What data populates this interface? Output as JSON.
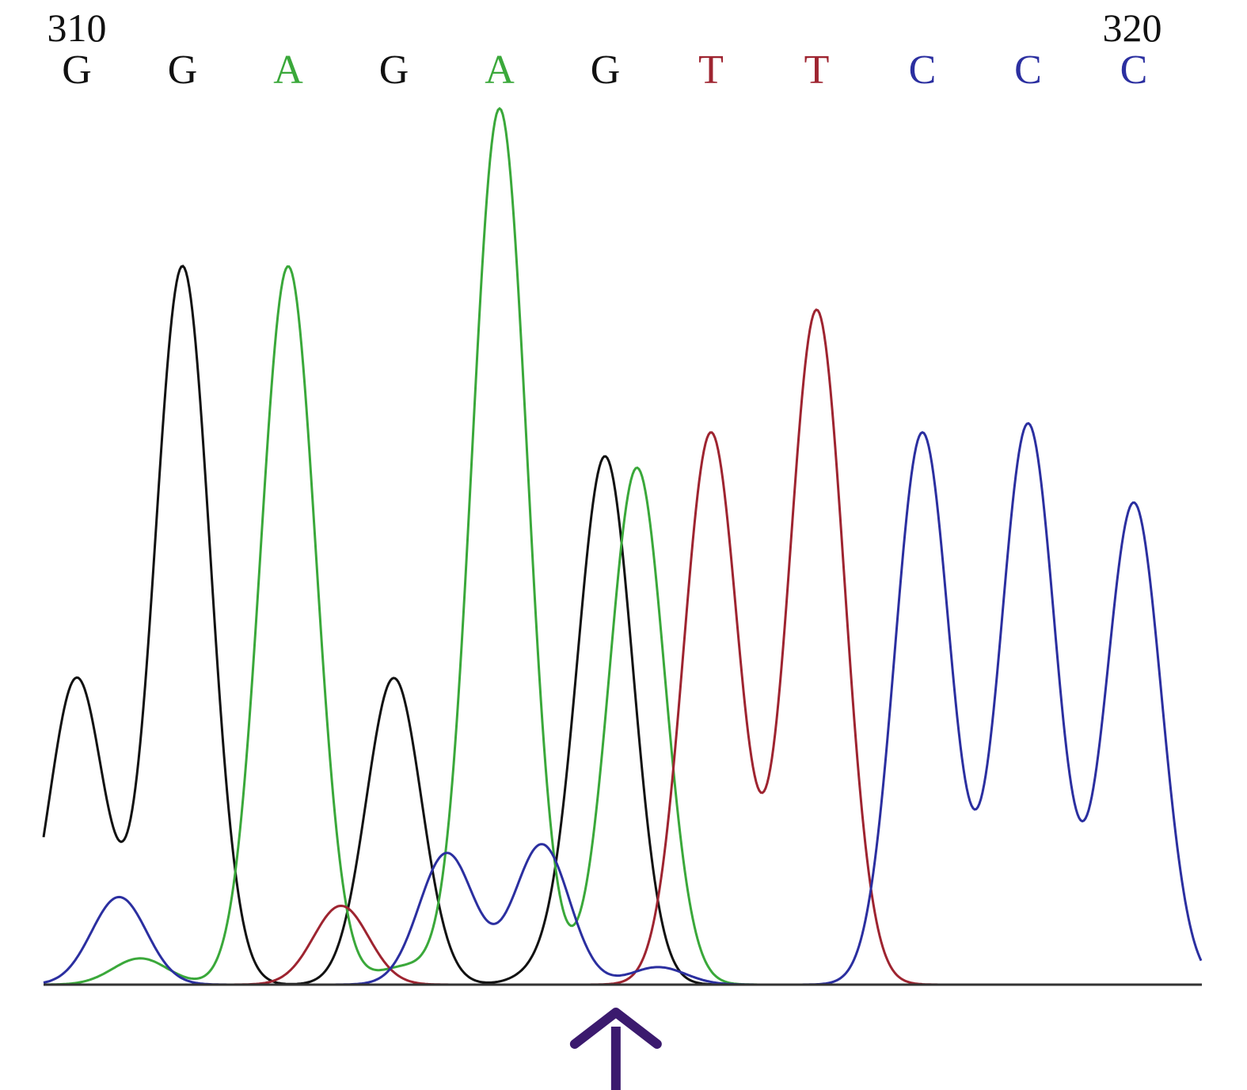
{
  "chart_data": {
    "type": "line",
    "title": "",
    "xlabel": "",
    "ylabel": "",
    "grid": false,
    "position_labels": [
      "310",
      "320"
    ],
    "bases": [
      "G",
      "G",
      "A",
      "G",
      "A",
      "G",
      "T",
      "T",
      "C",
      "C",
      "C"
    ],
    "base_colors": {
      "A": "#3aa83a",
      "C": "#2b2fa0",
      "G": "#111111",
      "T": "#9e2430"
    },
    "ylim": [
      0,
      100
    ],
    "series": [
      {
        "name": "G",
        "peaks": [
          {
            "base_index": 0,
            "height": 35
          },
          {
            "base_index": 1,
            "height": 82
          },
          {
            "base_index": 3,
            "height": 35
          },
          {
            "base_index": 5,
            "height": 60
          },
          {
            "base_index": 4.5,
            "height": 2
          }
        ]
      },
      {
        "name": "A",
        "peaks": [
          {
            "base_index": 2,
            "height": 82
          },
          {
            "base_index": 4,
            "height": 100
          },
          {
            "base_index": 5.3,
            "height": 59
          },
          {
            "base_index": 0.6,
            "height": 3
          },
          {
            "base_index": 3.1,
            "height": 2
          }
        ]
      },
      {
        "name": "T",
        "peaks": [
          {
            "base_index": 6,
            "height": 63
          },
          {
            "base_index": 7,
            "height": 77
          },
          {
            "base_index": 2.5,
            "height": 9
          }
        ]
      },
      {
        "name": "C",
        "peaks": [
          {
            "base_index": 0.4,
            "height": 10
          },
          {
            "base_index": 3.5,
            "height": 15
          },
          {
            "base_index": 4.4,
            "height": 16
          },
          {
            "base_index": 5.5,
            "height": 2
          },
          {
            "base_index": 8,
            "height": 63
          },
          {
            "base_index": 9,
            "height": 64
          },
          {
            "base_index": 10,
            "height": 55
          }
        ]
      }
    ],
    "annotation": {
      "type": "arrow",
      "direction": "up",
      "color": "#3b1a6e",
      "base_index": 5.1
    }
  }
}
